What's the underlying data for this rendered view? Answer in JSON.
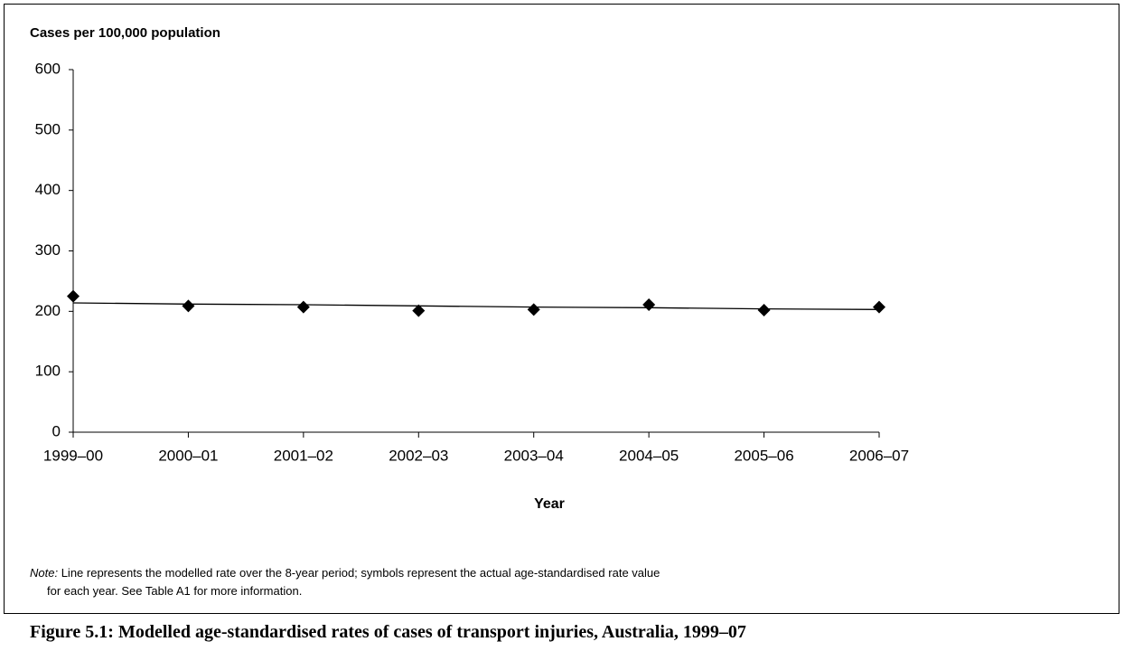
{
  "chart_data": {
    "type": "line",
    "y_axis_label": "Cases per 100,000 population",
    "x_axis_label": "Year",
    "categories": [
      "1999–00",
      "2000–01",
      "2001–02",
      "2002–03",
      "2003–04",
      "2004–05",
      "2005–06",
      "2006–07"
    ],
    "series": [
      {
        "color": "#000000",
        "marker": "diamond",
        "line": false,
        "values": [
          225,
          209,
          207,
          201,
          203,
          211,
          202,
          207
        ]
      },
      {
        "color": "#000000",
        "marker": "none",
        "line": true,
        "values": [
          214,
          212,
          211,
          209,
          207,
          206,
          204,
          203
        ]
      }
    ],
    "ylim": [
      0,
      600
    ],
    "yticks": [
      0,
      100,
      200,
      300,
      400,
      500,
      600
    ],
    "grid": false,
    "note_label": "Note:",
    "note_lines": [
      "Line represents the modelled rate over the 8-year period; symbols represent the actual age-standardised rate value",
      "for each year. See Table A1 for more information."
    ],
    "caption": "Figure 5.1: Modelled age-standardised rates of cases of transport injuries, Australia, 1999–07"
  }
}
